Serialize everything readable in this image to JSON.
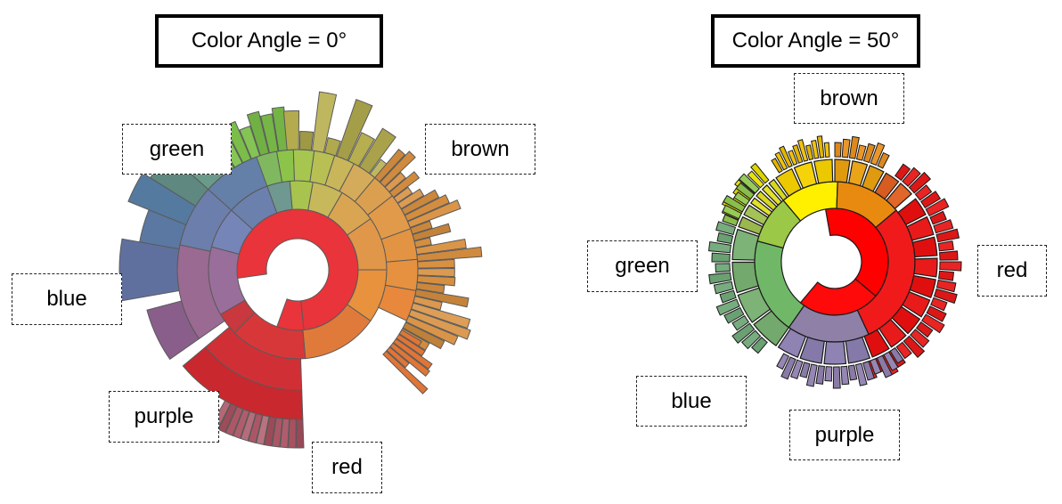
{
  "panels": [
    {
      "id": "left",
      "title": "Color Angle = 0°",
      "labels": {
        "green": "green",
        "brown": "brown",
        "blue": "blue",
        "purple": "purple",
        "red": "red"
      }
    },
    {
      "id": "right",
      "title": "Color Angle = 50°",
      "labels": {
        "brown": "brown",
        "green": "green",
        "red": "red",
        "blue": "blue",
        "purple": "purple"
      }
    }
  ],
  "colors": {
    "red": "#e8343a",
    "brown": "#d4923f",
    "green": "#7cc04a",
    "blue": "#6a7fb0",
    "purple": "#9a6e9a"
  }
}
